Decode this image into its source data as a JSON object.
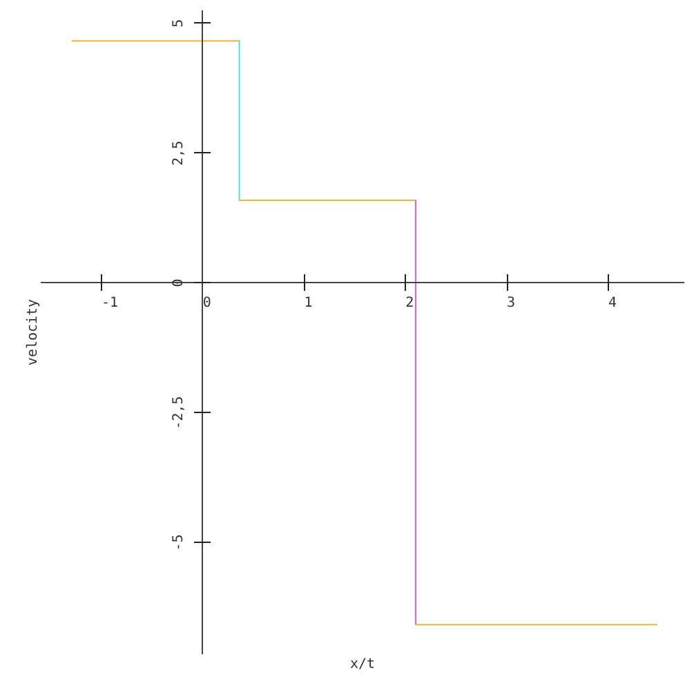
{
  "chart_data": {
    "type": "line",
    "xlabel": "x/t",
    "ylabel": "velocity",
    "xlim": [
      -1.6,
      4.75
    ],
    "ylim": [
      -7.15,
      5.25
    ],
    "xticks": [
      -1,
      0,
      1,
      2,
      3,
      4
    ],
    "yticks": [
      -5,
      {
        "value": -2.5,
        "label": "-2,5"
      },
      0,
      {
        "value": 2.5,
        "label": "2,5"
      },
      5
    ],
    "grid": false,
    "series": [
      {
        "color": "#f0b830",
        "x": [
          -1.29,
          0.36
        ],
        "values": [
          4.66,
          4.66
        ]
      },
      {
        "color": "#50e0e0",
        "x": [
          0.36,
          0.36
        ],
        "values": [
          4.66,
          1.59
        ]
      },
      {
        "color": "#f0b830",
        "x": [
          0.36,
          2.1
        ],
        "values": [
          1.59,
          1.59
        ]
      },
      {
        "color": "#e060e0",
        "x": [
          2.1,
          2.1
        ],
        "values": [
          1.59,
          -6.58
        ]
      },
      {
        "color": "#f0b830",
        "x": [
          2.1,
          4.48
        ],
        "values": [
          -6.58,
          -6.58
        ]
      }
    ]
  }
}
